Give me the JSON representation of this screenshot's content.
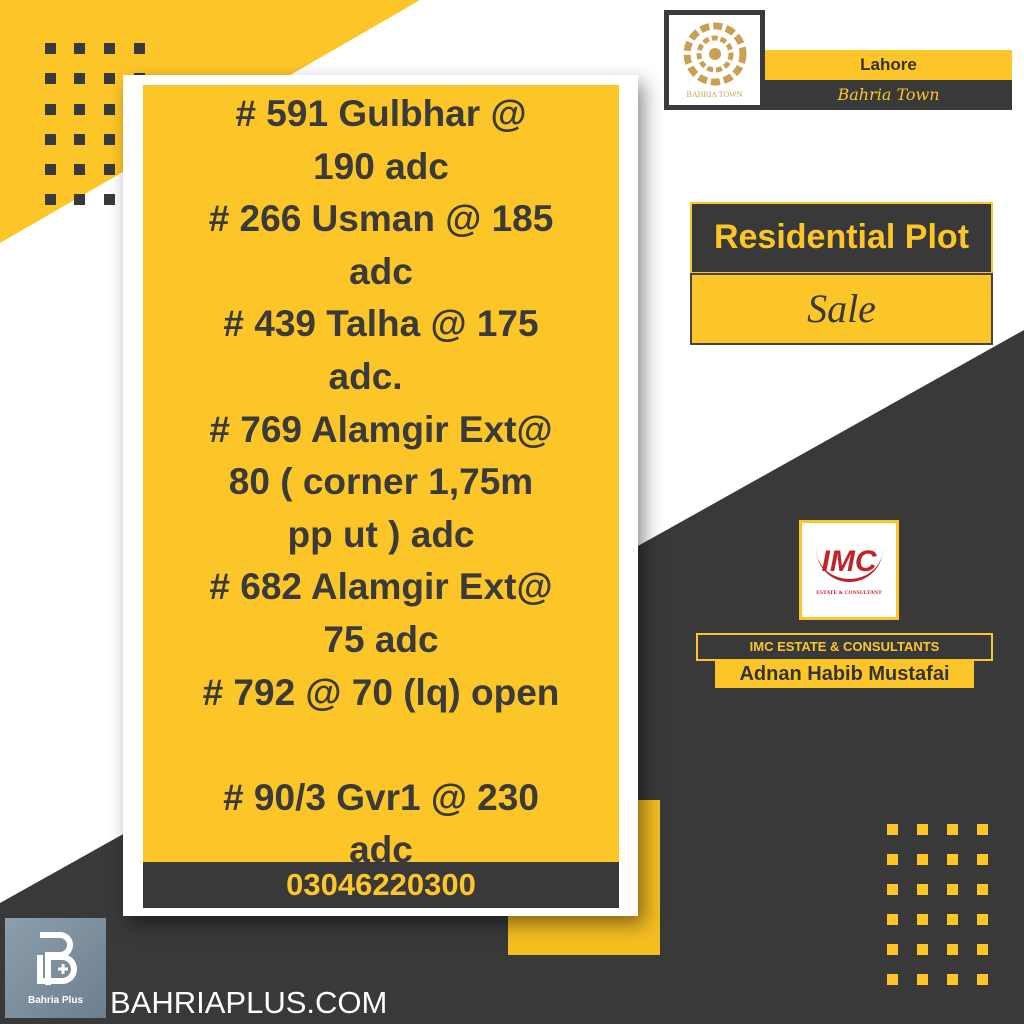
{
  "colors": {
    "accent": "#fdc628",
    "dark": "#393939",
    "background": "#ffffff",
    "logo_red": "#c0242b"
  },
  "header": {
    "city": "Lahore",
    "project": "Bahria Town",
    "logo_text": "BAHRIA TOWN"
  },
  "category": {
    "title": "Residential Plot",
    "type": "Sale"
  },
  "listing": {
    "lines": [
      "# 591 Gulbhar @",
      "190 adc",
      "# 266 Usman @ 185",
      "adc",
      "# 439 Talha @ 175",
      "adc.   ",
      "# 769 Alamgir Ext@",
      "80 ( corner 1,75m",
      "pp ut ) adc",
      "# 682 Alamgir Ext@",
      "75 adc",
      "# 792 @ 70 (lq) open",
      " ",
      "# 90/3 Gvr1 @ 230",
      "adc"
    ],
    "phone": "03046220300"
  },
  "agency": {
    "logo_text": "IMC",
    "logo_subtitle": "ESTATE & CONSULTANT",
    "name": "IMC ESTATE & CONSULTANTS",
    "agent": "Adnan Habib Mustafai"
  },
  "footer": {
    "logo_text": "Bahria Plus",
    "website": "BAHRIAPLUS.COM"
  }
}
